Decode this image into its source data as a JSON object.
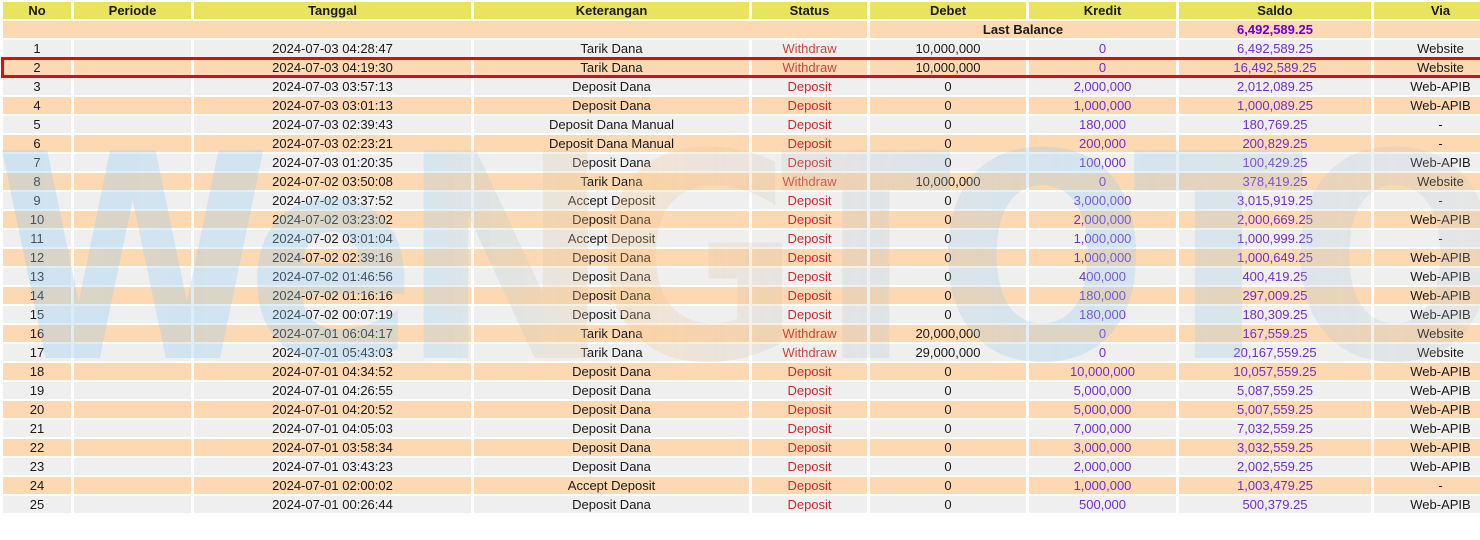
{
  "colors": {
    "header_bg": "#e9e35f",
    "row_gray": "#efefef",
    "row_peach": "#fcd9b3",
    "highlight_border": "#cf1212",
    "status_withdraw": "#c8473a",
    "status_deposit": "#cc2b2b",
    "amount_purple": "#7030c8",
    "balance_purple": "#6a00d0",
    "text": "#1a1a1a"
  },
  "watermark": {
    "text": "WeNGTOTO"
  },
  "table": {
    "columns": [
      {
        "key": "no",
        "label": "No"
      },
      {
        "key": "periode",
        "label": "Periode"
      },
      {
        "key": "tanggal",
        "label": "Tanggal"
      },
      {
        "key": "keterangan",
        "label": "Keterangan"
      },
      {
        "key": "status",
        "label": "Status"
      },
      {
        "key": "debet",
        "label": "Debet"
      },
      {
        "key": "kredit",
        "label": "Kredit"
      },
      {
        "key": "saldo",
        "label": "Saldo"
      },
      {
        "key": "via",
        "label": "Via"
      }
    ],
    "last_balance": {
      "label": "Last Balance",
      "value": "6,492,589.25"
    },
    "highlighted_no": "2",
    "rows": [
      {
        "no": "1",
        "periode": "",
        "tanggal": "2024-07-03 04:28:47",
        "keterangan": "Tarik Dana",
        "status": "Withdraw",
        "debet": "10,000,000",
        "kredit": "0",
        "saldo": "6,492,589.25",
        "via": "Website"
      },
      {
        "no": "2",
        "periode": "",
        "tanggal": "2024-07-03 04:19:30",
        "keterangan": "Tarik Dana",
        "status": "Withdraw",
        "debet": "10,000,000",
        "kredit": "0",
        "saldo": "16,492,589.25",
        "via": "Website"
      },
      {
        "no": "3",
        "periode": "",
        "tanggal": "2024-07-03 03:57:13",
        "keterangan": "Deposit Dana",
        "status": "Deposit",
        "debet": "0",
        "kredit": "2,000,000",
        "saldo": "2,012,089.25",
        "via": "Web-APIB"
      },
      {
        "no": "4",
        "periode": "",
        "tanggal": "2024-07-03 03:01:13",
        "keterangan": "Deposit Dana",
        "status": "Deposit",
        "debet": "0",
        "kredit": "1,000,000",
        "saldo": "1,000,089.25",
        "via": "Web-APIB"
      },
      {
        "no": "5",
        "periode": "",
        "tanggal": "2024-07-03 02:39:43",
        "keterangan": "Deposit Dana Manual",
        "status": "Deposit",
        "debet": "0",
        "kredit": "180,000",
        "saldo": "180,769.25",
        "via": "-"
      },
      {
        "no": "6",
        "periode": "",
        "tanggal": "2024-07-03 02:23:21",
        "keterangan": "Deposit Dana Manual",
        "status": "Deposit",
        "debet": "0",
        "kredit": "200,000",
        "saldo": "200,829.25",
        "via": "-"
      },
      {
        "no": "7",
        "periode": "",
        "tanggal": "2024-07-03 01:20:35",
        "keterangan": "Deposit Dana",
        "status": "Deposit",
        "debet": "0",
        "kredit": "100,000",
        "saldo": "100,429.25",
        "via": "Web-APIB"
      },
      {
        "no": "8",
        "periode": "",
        "tanggal": "2024-07-02 03:50:08",
        "keterangan": "Tarik Dana",
        "status": "Withdraw",
        "debet": "10,000,000",
        "kredit": "0",
        "saldo": "378,419.25",
        "via": "Website"
      },
      {
        "no": "9",
        "periode": "",
        "tanggal": "2024-07-02 03:37:52",
        "keterangan": "Accept Deposit",
        "status": "Deposit",
        "debet": "0",
        "kredit": "3,000,000",
        "saldo": "3,015,919.25",
        "via": "-"
      },
      {
        "no": "10",
        "periode": "",
        "tanggal": "2024-07-02 03:23:02",
        "keterangan": "Deposit Dana",
        "status": "Deposit",
        "debet": "0",
        "kredit": "2,000,000",
        "saldo": "2,000,669.25",
        "via": "Web-APIB"
      },
      {
        "no": "11",
        "periode": "",
        "tanggal": "2024-07-02 03:01:04",
        "keterangan": "Accept Deposit",
        "status": "Deposit",
        "debet": "0",
        "kredit": "1,000,000",
        "saldo": "1,000,999.25",
        "via": "-"
      },
      {
        "no": "12",
        "periode": "",
        "tanggal": "2024-07-02 02:39:16",
        "keterangan": "Deposit Dana",
        "status": "Deposit",
        "debet": "0",
        "kredit": "1,000,000",
        "saldo": "1,000,649.25",
        "via": "Web-APIB"
      },
      {
        "no": "13",
        "periode": "",
        "tanggal": "2024-07-02 01:46:56",
        "keterangan": "Deposit Dana",
        "status": "Deposit",
        "debet": "0",
        "kredit": "400,000",
        "saldo": "400,419.25",
        "via": "Web-APIB"
      },
      {
        "no": "14",
        "periode": "",
        "tanggal": "2024-07-02 01:16:16",
        "keterangan": "Deposit Dana",
        "status": "Deposit",
        "debet": "0",
        "kredit": "180,000",
        "saldo": "297,009.25",
        "via": "Web-APIB"
      },
      {
        "no": "15",
        "periode": "",
        "tanggal": "2024-07-02 00:07:19",
        "keterangan": "Deposit Dana",
        "status": "Deposit",
        "debet": "0",
        "kredit": "180,000",
        "saldo": "180,309.25",
        "via": "Web-APIB"
      },
      {
        "no": "16",
        "periode": "",
        "tanggal": "2024-07-01 06:04:17",
        "keterangan": "Tarik Dana",
        "status": "Withdraw",
        "debet": "20,000,000",
        "kredit": "0",
        "saldo": "167,559.25",
        "via": "Website"
      },
      {
        "no": "17",
        "periode": "",
        "tanggal": "2024-07-01 05:43:03",
        "keterangan": "Tarik Dana",
        "status": "Withdraw",
        "debet": "29,000,000",
        "kredit": "0",
        "saldo": "20,167,559.25",
        "via": "Website"
      },
      {
        "no": "18",
        "periode": "",
        "tanggal": "2024-07-01 04:34:52",
        "keterangan": "Deposit Dana",
        "status": "Deposit",
        "debet": "0",
        "kredit": "10,000,000",
        "saldo": "10,057,559.25",
        "via": "Web-APIB"
      },
      {
        "no": "19",
        "periode": "",
        "tanggal": "2024-07-01 04:26:55",
        "keterangan": "Deposit Dana",
        "status": "Deposit",
        "debet": "0",
        "kredit": "5,000,000",
        "saldo": "5,087,559.25",
        "via": "Web-APIB"
      },
      {
        "no": "20",
        "periode": "",
        "tanggal": "2024-07-01 04:20:52",
        "keterangan": "Deposit Dana",
        "status": "Deposit",
        "debet": "0",
        "kredit": "5,000,000",
        "saldo": "5,007,559.25",
        "via": "Web-APIB"
      },
      {
        "no": "21",
        "periode": "",
        "tanggal": "2024-07-01 04:05:03",
        "keterangan": "Deposit Dana",
        "status": "Deposit",
        "debet": "0",
        "kredit": "7,000,000",
        "saldo": "7,032,559.25",
        "via": "Web-APIB"
      },
      {
        "no": "22",
        "periode": "",
        "tanggal": "2024-07-01 03:58:34",
        "keterangan": "Deposit Dana",
        "status": "Deposit",
        "debet": "0",
        "kredit": "3,000,000",
        "saldo": "3,032,559.25",
        "via": "Web-APIB"
      },
      {
        "no": "23",
        "periode": "",
        "tanggal": "2024-07-01 03:43:23",
        "keterangan": "Deposit Dana",
        "status": "Deposit",
        "debet": "0",
        "kredit": "2,000,000",
        "saldo": "2,002,559.25",
        "via": "Web-APIB"
      },
      {
        "no": "24",
        "periode": "",
        "tanggal": "2024-07-01 02:00:02",
        "keterangan": "Accept Deposit",
        "status": "Deposit",
        "debet": "0",
        "kredit": "1,000,000",
        "saldo": "1,003,479.25",
        "via": "-"
      },
      {
        "no": "25",
        "periode": "",
        "tanggal": "2024-07-01 00:26:44",
        "keterangan": "Deposit Dana",
        "status": "Deposit",
        "debet": "0",
        "kredit": "500,000",
        "saldo": "500,379.25",
        "via": "Web-APIB"
      }
    ]
  }
}
